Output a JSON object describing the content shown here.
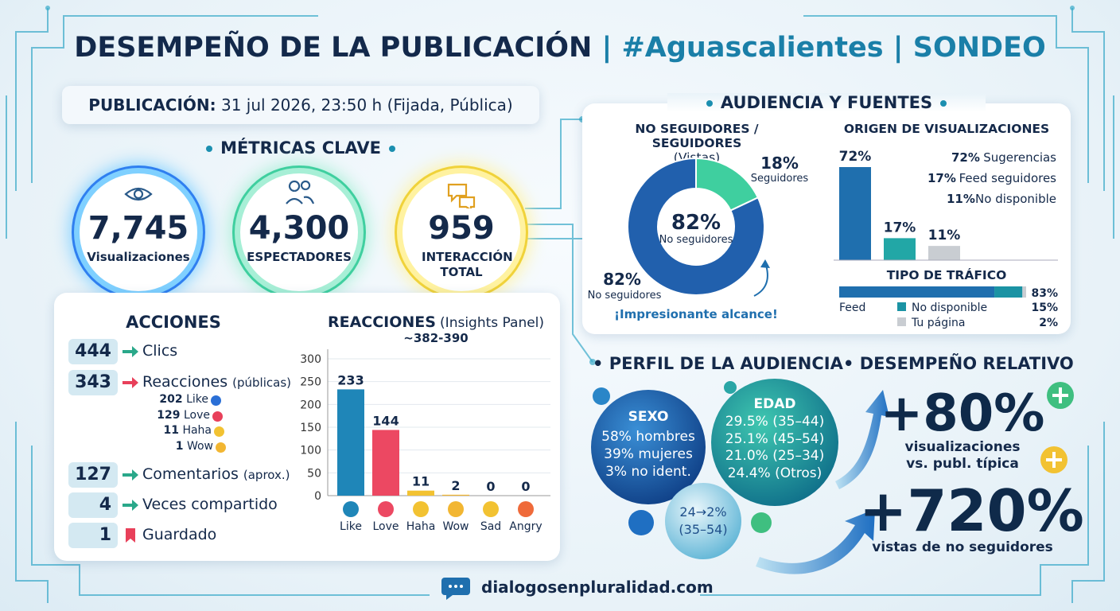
{
  "header": {
    "title": "DESEMPEÑO DE LA PUBLICACIÓN",
    "subtitle": "| #Aguascalientes | SONDEO"
  },
  "publication": {
    "label": "PUBLICACIÓN:",
    "value": "31 jul 2026, 23:50 h (Fijada, Pública)"
  },
  "metrics": {
    "title": "MÉTRICAS CLAVE",
    "items": [
      {
        "value": "7,745",
        "label": "Visualizaciones"
      },
      {
        "value": "4,300",
        "label": "ESPECTADORES"
      },
      {
        "value": "959",
        "label": "INTERACCIÓN TOTAL"
      }
    ]
  },
  "actions": {
    "title": "ACCIONES",
    "items": [
      {
        "value": "444",
        "label": "Clics"
      },
      {
        "value": "343",
        "label": "Reacciones",
        "note": "(públicas)"
      },
      {
        "value": "127",
        "label": "Comentarios",
        "note": "(aprox.)"
      },
      {
        "value": "4",
        "label": "Veces compartido"
      },
      {
        "value": "1",
        "label": "Guardado"
      }
    ],
    "reactions": [
      {
        "value": "202",
        "label": "Like"
      },
      {
        "value": "129",
        "label": "Love"
      },
      {
        "value": "11",
        "label": "Haha"
      },
      {
        "value": "1",
        "label": "Wow"
      }
    ]
  },
  "reactions_chart": {
    "type": "bar",
    "title": "REACCIONES",
    "subtitle": "(Insights Panel)",
    "note": "~382-390",
    "categories": [
      "Like",
      "Love",
      "Haha",
      "Wow",
      "Sad",
      "Angry"
    ],
    "values": [
      233,
      144,
      11,
      2,
      0,
      0
    ],
    "colors": [
      "#1f86b8",
      "#ec4862",
      "#f2c232",
      "#f2b632",
      "#f2c232",
      "#ef6a3a"
    ],
    "ylim": [
      0,
      300
    ],
    "yticks": [
      0,
      50,
      100,
      150,
      200,
      250,
      300
    ]
  },
  "audience": {
    "title": "AUDIENCIA Y FUENTES",
    "followers": {
      "type": "pie",
      "title": "NO SEGUIDORES / SEGUIDORES",
      "subtitle": "(Vistas)",
      "categories": [
        "No seguidores",
        "Seguidores"
      ],
      "values": [
        82,
        18
      ],
      "value_labels": [
        "82%",
        "18%"
      ],
      "colors": [
        "#2160ad",
        "#3fcf9f"
      ],
      "annotation": "¡Impresionante alcance!"
    },
    "origin": {
      "type": "bar",
      "title": "ORIGEN DE VISUALIZACIONES",
      "categories": [
        "Sugerencias",
        "Feed seguidores",
        "No disponible"
      ],
      "values": [
        72,
        17,
        11
      ],
      "value_labels": [
        "72%",
        "17%",
        "11%"
      ],
      "colors": [
        "#1f6fae",
        "#22a7a6",
        "#c9cdd2"
      ]
    },
    "traffic": {
      "type": "bar",
      "title": "TIPO DE TRÁFICO",
      "categories": [
        "Feed",
        "No disponible",
        "Tu página"
      ],
      "values": [
        83,
        15,
        2
      ],
      "value_labels": [
        "83%",
        "15%",
        "2%"
      ],
      "colors": [
        "#1f6fae",
        "#1b93a4",
        "#c9cdd2"
      ]
    }
  },
  "profile": {
    "title": "PERFIL DE LA AUDIENCIA",
    "sex": {
      "title": "SEXO",
      "items": [
        "58% hombres",
        "39% mujeres",
        "3% no ident."
      ]
    },
    "age": {
      "title": "EDAD",
      "items": [
        "29.5% (35–44)",
        "25.1% (45–54)",
        "21.0% (25–34)",
        "24.4% (Otros)"
      ]
    },
    "combined": {
      "value": "24→2%",
      "label": "(35–54)"
    }
  },
  "relative": {
    "title": "DESEMPEÑO RELATIVO",
    "items": [
      {
        "value": "+80%",
        "lines": [
          "visualizaciones",
          "vs. publ. típica"
        ]
      },
      {
        "value": "+720%",
        "lines": [
          "vistas de no seguidores"
        ]
      }
    ]
  },
  "footer": {
    "site": "dialogosenpluralidad.com"
  }
}
